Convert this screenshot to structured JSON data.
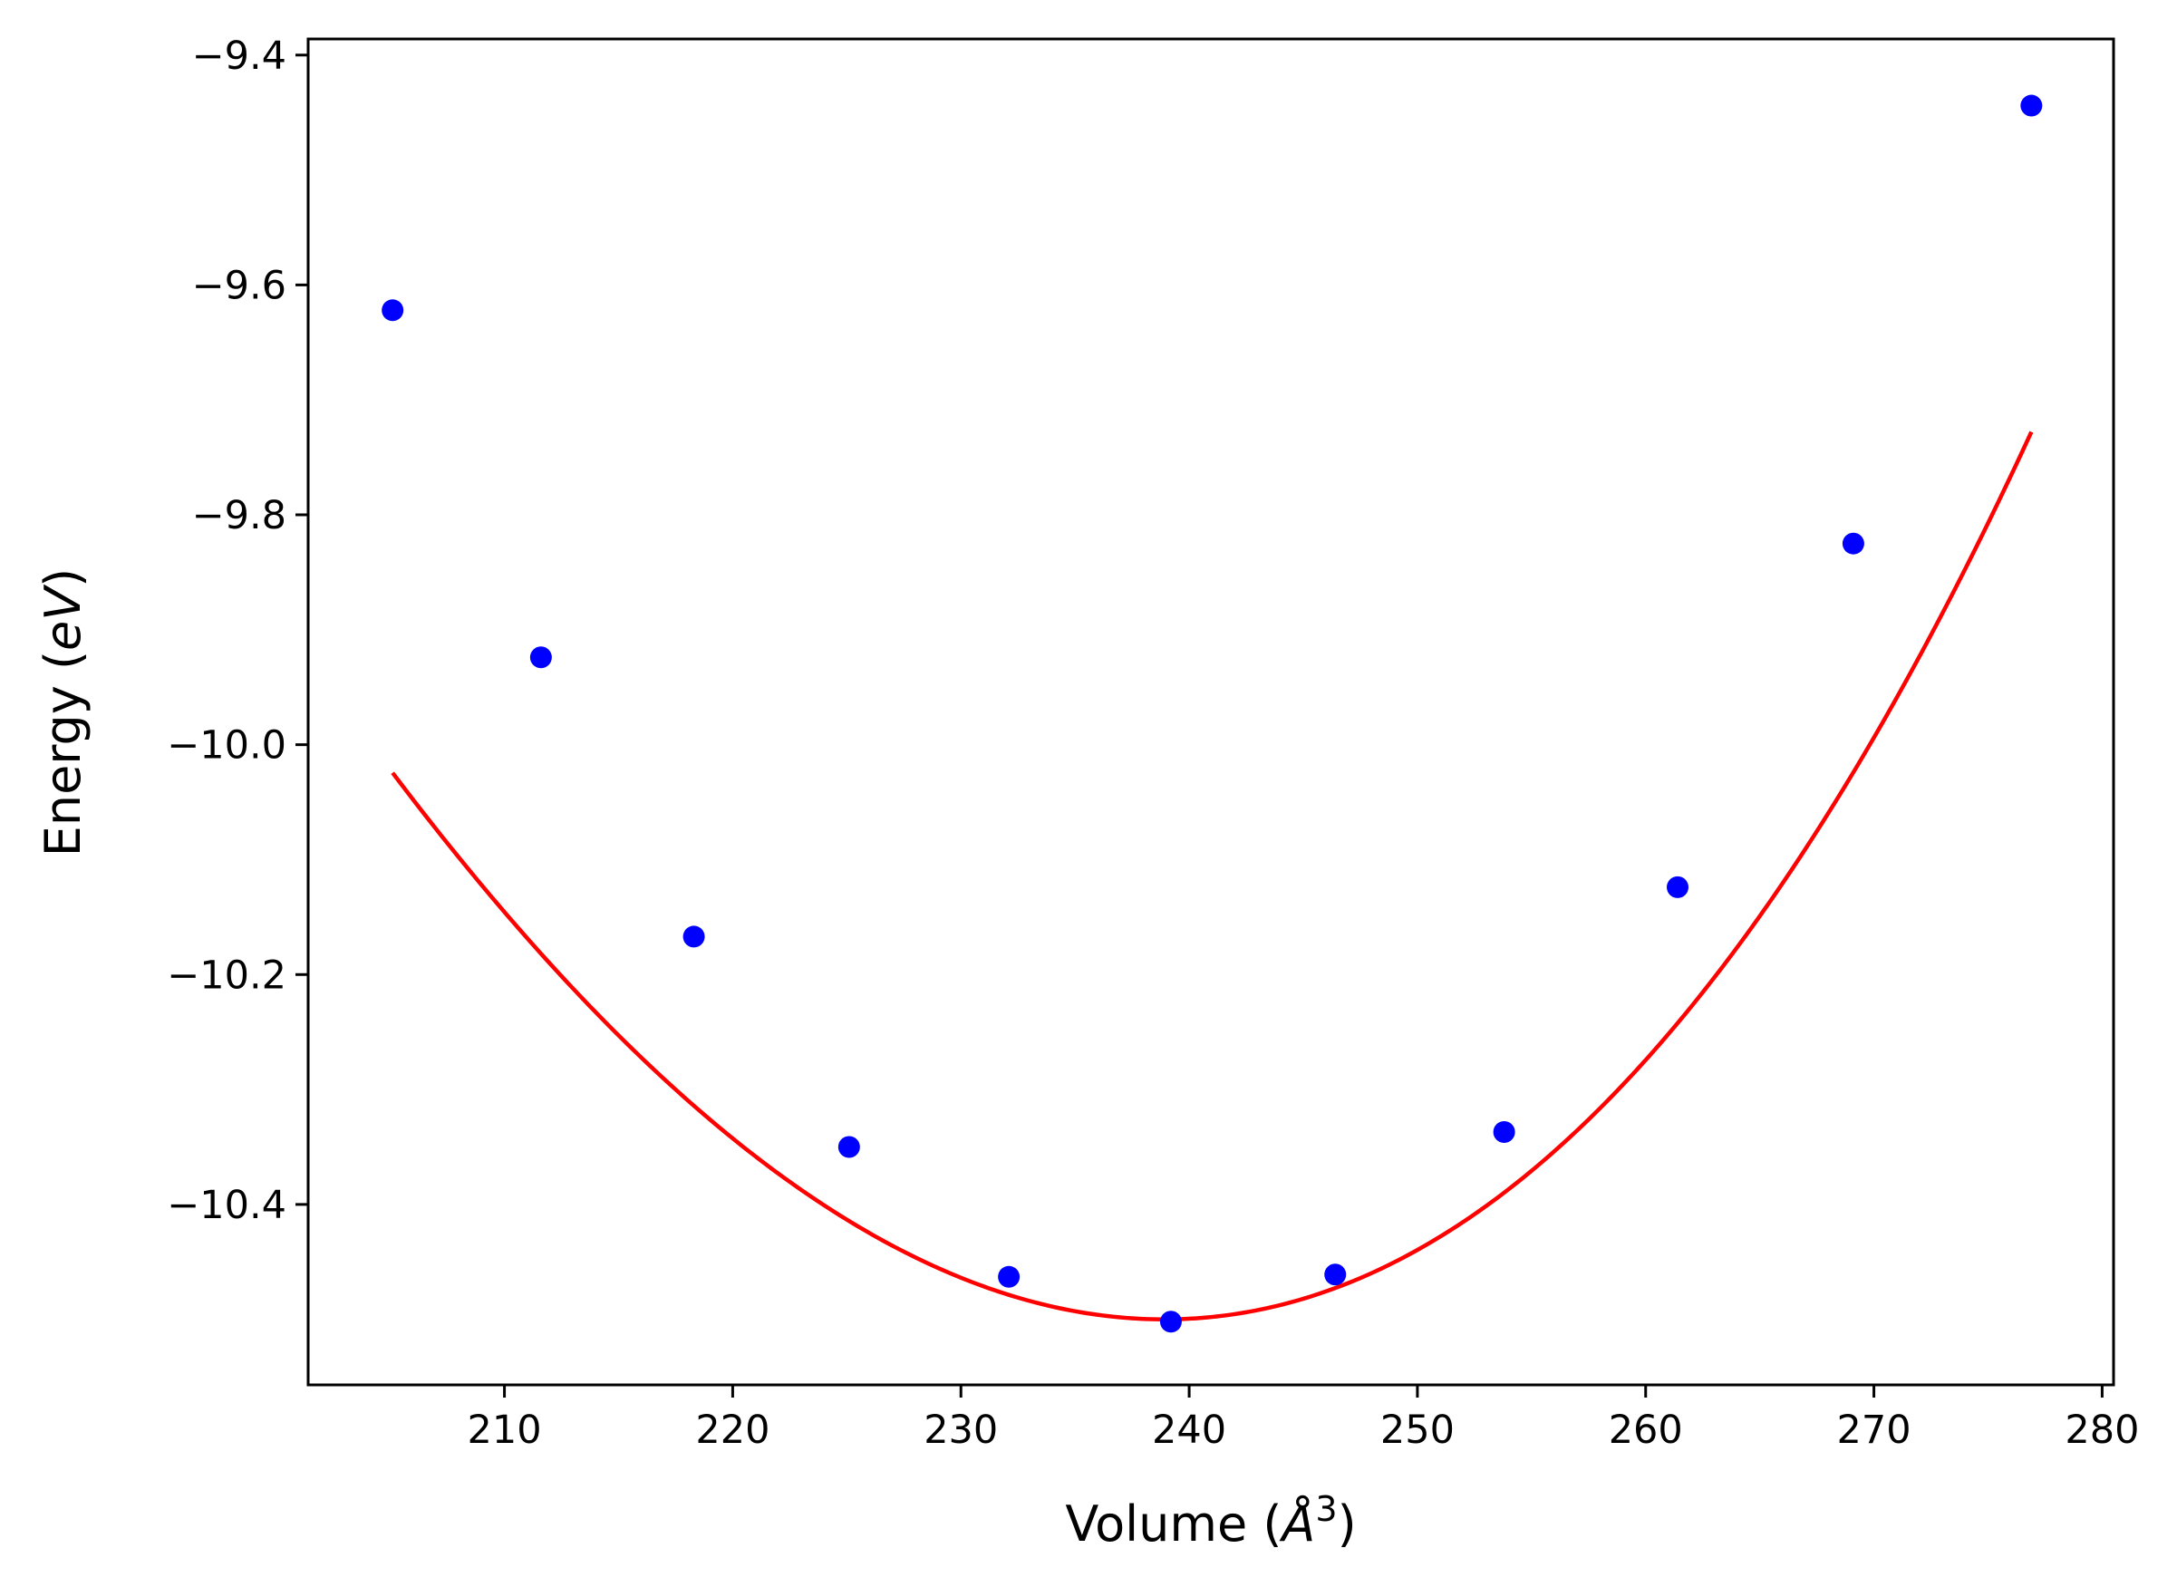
{
  "chart_data": {
    "type": "scatter",
    "title": "",
    "xlabel": "Volume ($\\AA^3$)",
    "xlabel_parts": {
      "prefix": "Volume (",
      "unit": "Å",
      "exponent": "3",
      "suffix": ")"
    },
    "ylabel": "Energy ($eV$)",
    "ylabel_parts": {
      "prefix": "Energy (",
      "unit": "eV",
      "suffix": ")"
    },
    "xlim": [
      201.4,
      280.5
    ],
    "ylim": [
      -10.557,
      -9.386
    ],
    "xticks": [
      210,
      220,
      230,
      240,
      250,
      260,
      270,
      280
    ],
    "xtick_labels": [
      "210",
      "220",
      "230",
      "240",
      "250",
      "260",
      "270",
      "280"
    ],
    "yticks": [
      -10.4,
      -10.2,
      -10.0,
      -9.8,
      -9.6,
      -9.4
    ],
    "ytick_labels": [
      "−10.4",
      "−10.2",
      "−10.0",
      "−9.8",
      "−9.6",
      "−9.4"
    ],
    "grid": false,
    "series": [
      {
        "kind": "points",
        "color": "#0000ff",
        "x": [
          205.1,
          211.6,
          218.3,
          225.1,
          232.1,
          239.2,
          246.4,
          253.8,
          261.4,
          269.1,
          276.9
        ],
        "y": [
          -9.622,
          -9.924,
          -10.167,
          -10.35,
          -10.463,
          -10.502,
          -10.461,
          -10.337,
          -10.124,
          -9.825,
          -9.444
        ]
      },
      {
        "kind": "fit-line",
        "color": "#ff0000",
        "x_range": [
          205.1,
          276.9
        ],
        "coefficients_cubic": [
          -10.5,
          0.0,
          0.000472,
          1.65e-06
        ],
        "x_center": 238.9
      }
    ]
  }
}
